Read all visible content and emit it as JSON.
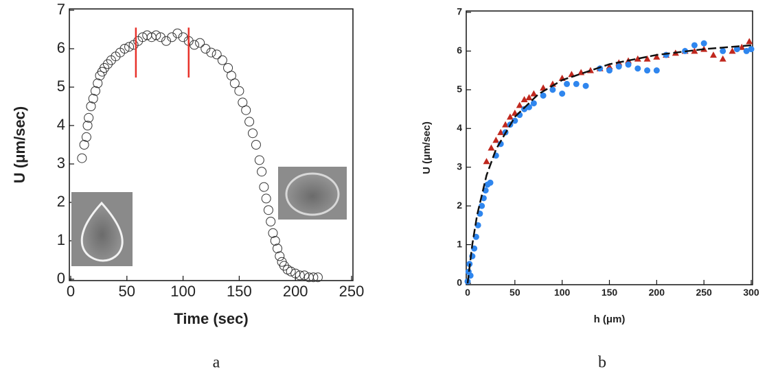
{
  "chart_data": [
    {
      "type": "scatter",
      "xlabel": "Time (sec)",
      "ylabel": "U (μm/sec)",
      "caption": "a",
      "marker": "open-circle",
      "color": "#333333",
      "xlim": [
        0,
        250
      ],
      "ylim": [
        0,
        7
      ],
      "xticks": [
        0,
        50,
        100,
        150,
        200,
        250
      ],
      "yticks": [
        0,
        1,
        2,
        3,
        4,
        5,
        6,
        7
      ],
      "x": [
        10,
        12,
        14,
        15,
        16,
        18,
        20,
        22,
        24,
        26,
        28,
        30,
        33,
        36,
        40,
        44,
        48,
        52,
        56,
        60,
        64,
        68,
        72,
        76,
        80,
        85,
        90,
        95,
        100,
        105,
        110,
        115,
        120,
        125,
        130,
        135,
        140,
        143,
        146,
        150,
        153,
        156,
        159,
        162,
        165,
        168,
        170,
        172,
        174,
        176,
        178,
        180,
        182,
        184,
        186,
        188,
        190,
        193,
        196,
        200,
        204,
        208,
        212,
        216,
        220
      ],
      "values": [
        3.15,
        3.5,
        3.7,
        4.0,
        4.2,
        4.5,
        4.7,
        4.9,
        5.1,
        5.3,
        5.4,
        5.5,
        5.6,
        5.7,
        5.8,
        5.9,
        6.0,
        6.05,
        6.1,
        6.2,
        6.3,
        6.35,
        6.3,
        6.35,
        6.3,
        6.2,
        6.3,
        6.4,
        6.3,
        6.2,
        6.1,
        6.15,
        6.0,
        5.9,
        5.85,
        5.7,
        5.5,
        5.3,
        5.1,
        4.9,
        4.6,
        4.4,
        4.1,
        3.8,
        3.5,
        3.1,
        2.8,
        2.4,
        2.1,
        1.8,
        1.5,
        1.2,
        1.0,
        0.8,
        0.6,
        0.45,
        0.35,
        0.25,
        0.2,
        0.15,
        0.1,
        0.1,
        0.05,
        0.05,
        0.05
      ],
      "vlines": [
        {
          "x": 58,
          "y": [
            5.25,
            6.55
          ],
          "color": "#e8312a"
        },
        {
          "x": 105,
          "y": [
            5.25,
            6.55
          ],
          "color": "#e8312a"
        }
      ]
    },
    {
      "type": "scatter",
      "xlabel": "h (μm)",
      "ylabel": "U (μm/sec)",
      "caption": "b",
      "xlim": [
        0,
        300
      ],
      "ylim": [
        0,
        7
      ],
      "xticks": [
        0,
        50,
        100,
        150,
        200,
        250,
        300
      ],
      "yticks": [
        0,
        1,
        2,
        3,
        4,
        5,
        6,
        7
      ],
      "series": [
        {
          "marker": "triangle",
          "color": "#c0281e",
          "x": [
            20,
            25,
            30,
            35,
            40,
            45,
            50,
            55,
            60,
            65,
            70,
            80,
            90,
            100,
            110,
            120,
            130,
            140,
            150,
            160,
            170,
            180,
            190,
            200,
            210,
            220,
            230,
            240,
            250,
            260,
            270,
            280,
            290,
            298
          ],
          "values": [
            3.15,
            3.5,
            3.7,
            3.9,
            4.1,
            4.3,
            4.4,
            4.6,
            4.75,
            4.8,
            4.9,
            5.05,
            5.15,
            5.3,
            5.4,
            5.45,
            5.5,
            5.55,
            5.6,
            5.7,
            5.75,
            5.8,
            5.8,
            5.85,
            5.9,
            5.95,
            6.0,
            6.0,
            6.05,
            5.9,
            5.8,
            6.0,
            6.1,
            6.25
          ]
        },
        {
          "marker": "filled-circle",
          "color": "#2f86ee",
          "x": [
            0,
            1,
            2,
            3,
            5,
            7,
            9,
            11,
            13,
            15,
            17,
            19,
            21,
            24,
            30,
            35,
            40,
            45,
            50,
            55,
            60,
            65,
            70,
            80,
            90,
            100,
            105,
            115,
            125,
            140,
            150,
            160,
            170,
            180,
            190,
            200,
            210,
            230,
            240,
            250,
            270,
            285,
            295,
            300
          ],
          "values": [
            0.05,
            0.3,
            0.5,
            0.2,
            0.7,
            0.9,
            1.2,
            1.5,
            1.8,
            2.0,
            2.2,
            2.4,
            2.55,
            2.6,
            3.3,
            3.6,
            3.9,
            4.1,
            4.2,
            4.35,
            4.5,
            4.55,
            4.65,
            4.85,
            5.0,
            4.9,
            5.15,
            5.15,
            5.1,
            5.55,
            5.5,
            5.6,
            5.65,
            5.55,
            5.5,
            5.5,
            5.9,
            6.0,
            6.15,
            6.2,
            6.0,
            6.05,
            6.0,
            6.05
          ]
        },
        {
          "marker": "dashed-line",
          "color": "#111111",
          "x": [
            0,
            5,
            10,
            20,
            30,
            50,
            75,
            100,
            150,
            200,
            250,
            300
          ],
          "values": [
            0,
            1.01,
            1.76,
            2.79,
            3.46,
            4.3,
            4.89,
            5.25,
            5.66,
            5.9,
            6.05,
            6.15
          ]
        }
      ]
    }
  ]
}
